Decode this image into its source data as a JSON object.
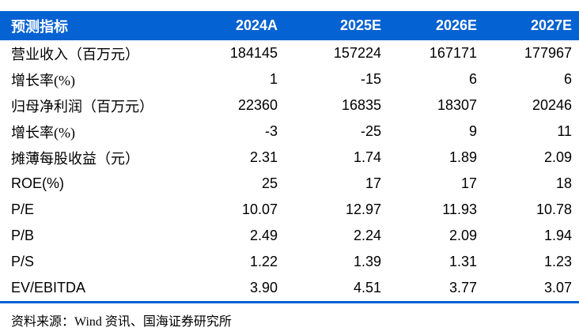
{
  "colors": {
    "header_bg": "#0562D2",
    "header_text": "#FFFFFF",
    "bottom_rule": "#0562D2",
    "body_text": "#000000",
    "background": "#FFFFFF"
  },
  "table": {
    "header_label": "预测指标",
    "columns": [
      "2024A",
      "2025E",
      "2026E",
      "2027E"
    ],
    "rows": [
      {
        "label": "营业收入（百万元）",
        "values": [
          "184145",
          "157224",
          "167171",
          "177967"
        ]
      },
      {
        "label": "增长率(%)",
        "values": [
          "1",
          "-15",
          "6",
          "6"
        ]
      },
      {
        "label": "归母净利润（百万元）",
        "values": [
          "22360",
          "16835",
          "18307",
          "20246"
        ]
      },
      {
        "label": "增长率(%)",
        "values": [
          "-3",
          "-25",
          "9",
          "11"
        ]
      },
      {
        "label": "摊薄每股收益（元）",
        "values": [
          "2.31",
          "1.74",
          "1.89",
          "2.09"
        ]
      },
      {
        "label": "ROE(%)",
        "values": [
          "25",
          "17",
          "17",
          "18"
        ]
      },
      {
        "label": "P/E",
        "values": [
          "10.07",
          "12.97",
          "11.93",
          "10.78"
        ]
      },
      {
        "label": "P/B",
        "values": [
          "2.49",
          "2.24",
          "2.09",
          "1.94"
        ]
      },
      {
        "label": "P/S",
        "values": [
          "1.22",
          "1.39",
          "1.31",
          "1.23"
        ]
      },
      {
        "label": "EV/EBITDA",
        "values": [
          "3.90",
          "4.51",
          "3.77",
          "3.07"
        ]
      }
    ],
    "source": "资料来源：Wind 资讯、国海证券研究所"
  }
}
